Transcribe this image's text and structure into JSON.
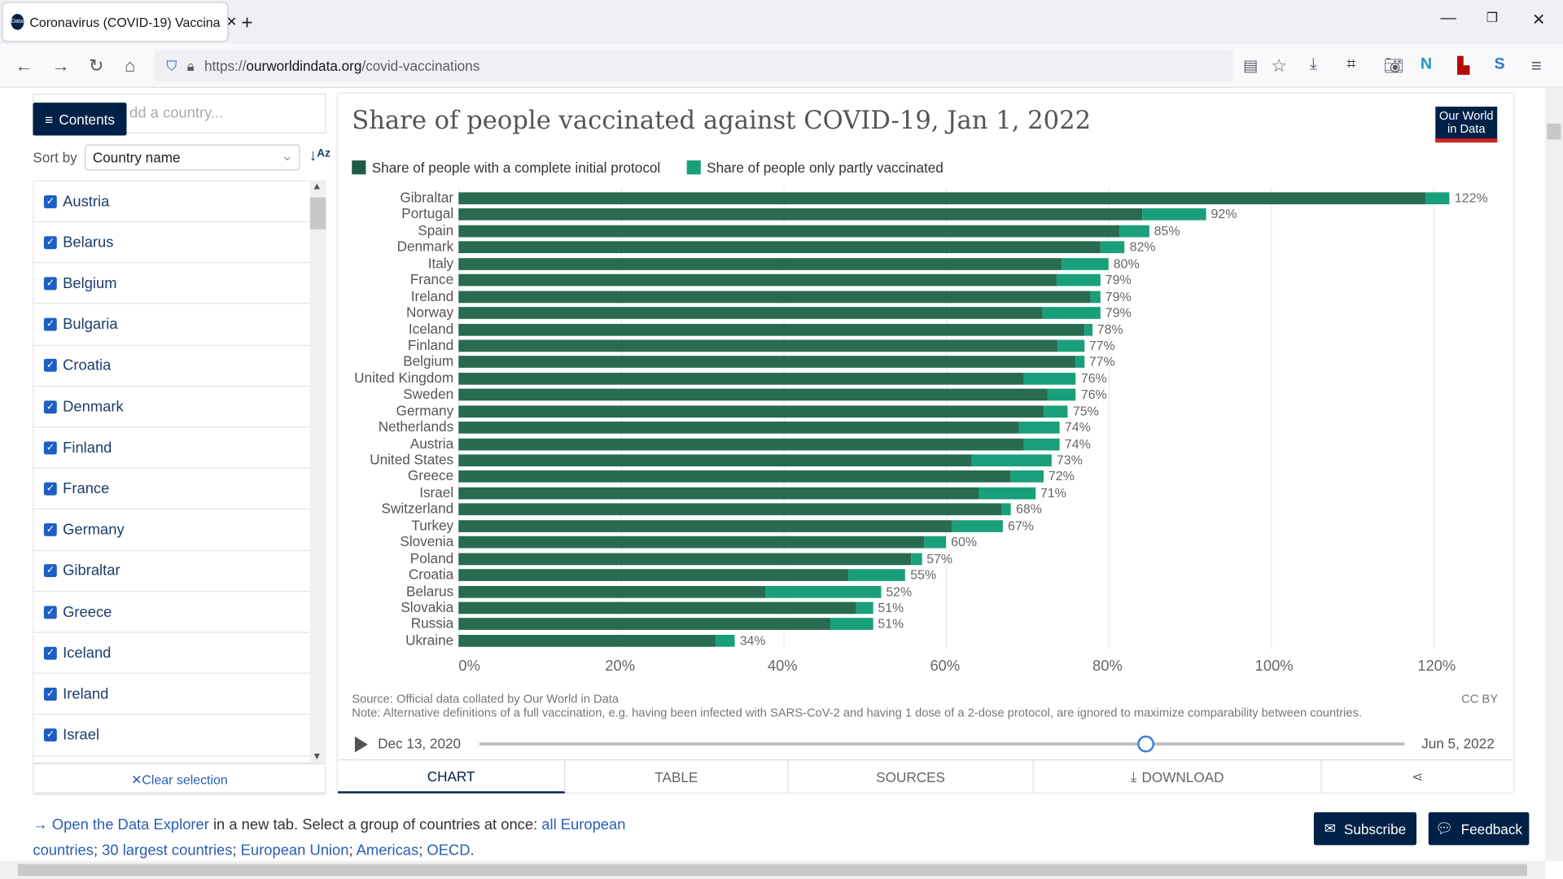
{
  "browser": {
    "tab_title": "Coronavirus (COVID-19) Vaccina",
    "favicon": "Our World in Data",
    "url_scheme": "https://",
    "url_host": "ourworldindata.org",
    "url_path": "/covid-vaccinations",
    "new_tab": "+",
    "minimize": "—",
    "restore": "❐",
    "close": "✕"
  },
  "sidebar": {
    "contents_label": "Contents",
    "search_placeholder": "dd a country...",
    "sort_by_label": "Sort by",
    "sort_value": "Country name",
    "clear_selection": "✕Clear selection",
    "items": [
      "Austria",
      "Belarus",
      "Belgium",
      "Bulgaria",
      "Croatia",
      "Denmark",
      "Finland",
      "France",
      "Germany",
      "Gibraltar",
      "Greece",
      "Iceland",
      "Ireland",
      "Israel"
    ]
  },
  "chart": {
    "logo": "Our World in Data",
    "source": "Source: Official data collated by Our World in Data",
    "note": "Note: Alternative definitions of a full vaccination, e.g. having been infected with SARS-CoV-2 and having 1 dose of a 2-dose protocol, are ignored to maximize comparability between countries.",
    "license": "CC BY",
    "timeline_start": "Dec 13, 2020",
    "timeline_end": "Jun 5, 2022",
    "timeline_position": 0.72,
    "tabs": [
      "CHART",
      "TABLE",
      "SOURCES",
      "DOWNLOAD"
    ]
  },
  "chart_data": {
    "type": "bar",
    "orientation": "horizontal",
    "stacked": true,
    "title": "Share of people vaccinated against COVID-19, Jan 1, 2022",
    "xlim": [
      0,
      130
    ],
    "xticks": [
      "0%",
      "20%",
      "40%",
      "60%",
      "80%",
      "100%",
      "120%"
    ],
    "xtick_values": [
      0,
      20,
      40,
      60,
      80,
      100,
      120
    ],
    "grid": true,
    "legend_position": "top",
    "colors": {
      "complete": "#286b51",
      "partial": "#19a07a"
    },
    "categories": [
      "Gibraltar",
      "Portugal",
      "Spain",
      "Denmark",
      "Italy",
      "France",
      "Ireland",
      "Norway",
      "Iceland",
      "Finland",
      "Belgium",
      "United Kingdom",
      "Sweden",
      "Germany",
      "Netherlands",
      "Austria",
      "United States",
      "Greece",
      "Israel",
      "Switzerland",
      "Turkey",
      "Slovenia",
      "Poland",
      "Croatia",
      "Belarus",
      "Slovakia",
      "Russia",
      "Ukraine"
    ],
    "series": [
      {
        "name": "Share of people with a complete initial protocol",
        "values": [
          119,
          84.2,
          81.3,
          79,
          74.2,
          73.6,
          77.8,
          71.9,
          77,
          73.7,
          76,
          69.6,
          72.5,
          72,
          69,
          69.6,
          63.2,
          68,
          64,
          66.9,
          60.7,
          57.3,
          55.7,
          48,
          37.8,
          49,
          45.8,
          31.7
        ]
      },
      {
        "name": "Share of people only partly vaccinated",
        "values": [
          3,
          7.8,
          3.7,
          3,
          5.8,
          5.4,
          1.2,
          7.1,
          1,
          3.3,
          1,
          6.4,
          3.5,
          3,
          5,
          4.4,
          9.8,
          4,
          7,
          1.1,
          6.3,
          2.7,
          1.3,
          7,
          14.2,
          2,
          5.2,
          2.3
        ]
      }
    ],
    "value_labels": [
      "122%",
      "92%",
      "85%",
      "82%",
      "80%",
      "79%",
      "79%",
      "79%",
      "78%",
      "77%",
      "77%",
      "76%",
      "76%",
      "75%",
      "74%",
      "74%",
      "73%",
      "72%",
      "71%",
      "68%",
      "67%",
      "60%",
      "57%",
      "55%",
      "52%",
      "51%",
      "51%",
      "34%"
    ]
  },
  "footer": {
    "arrow": "→ ",
    "explorer_link": "Open the Data Explorer",
    "text1": " in a new tab. Select a group of countries at once: ",
    "link1": "all European countries",
    "link2": "30 largest countries",
    "link3": "European Union",
    "link4": "Americas",
    "link5": "OECD",
    "sep": "; ",
    "end": ".",
    "subscribe": "Subscribe",
    "feedback": "Feedback"
  }
}
